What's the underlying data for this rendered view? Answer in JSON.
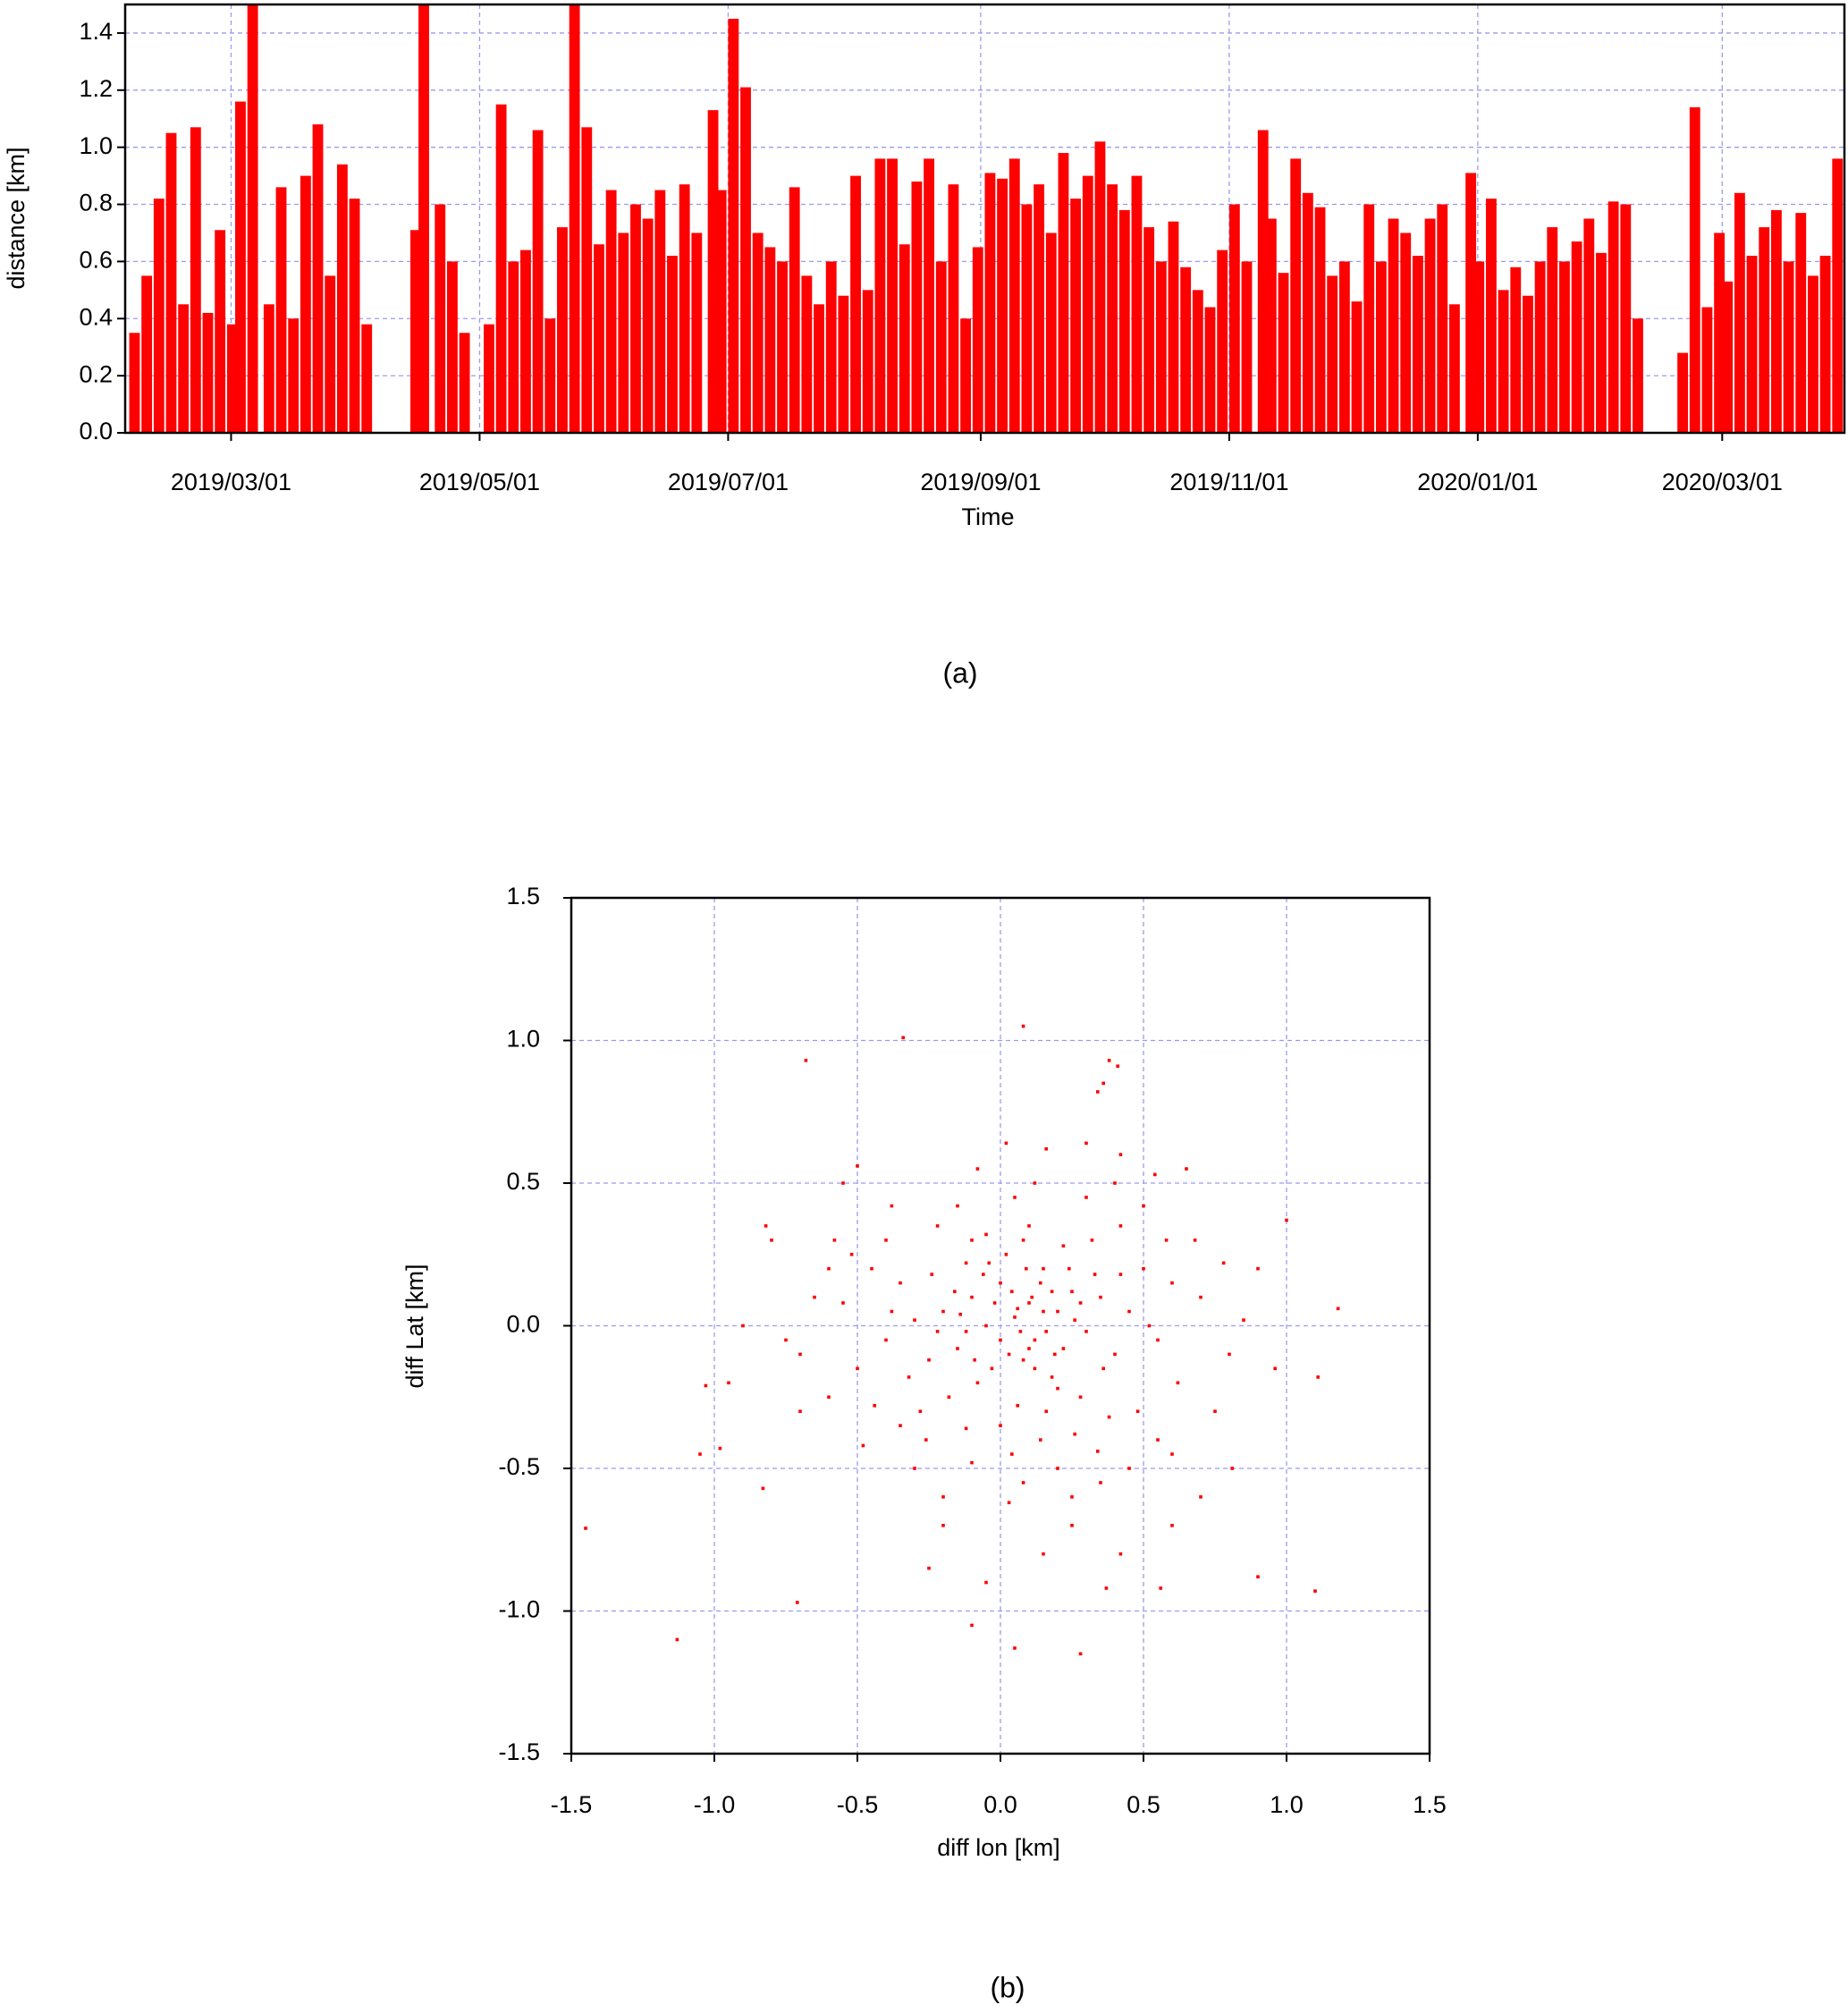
{
  "chart_data": [
    {
      "type": "bar",
      "xlabel": "Time",
      "ylabel": "distance [km]",
      "caption": "(a)",
      "color": "#ff0000",
      "grid": true,
      "xlim": [
        "2019/02/03",
        "2020/03/31"
      ],
      "xticks": [
        "2019/03/01",
        "2019/05/01",
        "2019/07/01",
        "2019/09/01",
        "2019/11/01",
        "2020/01/01",
        "2020/03/01"
      ],
      "ylim": [
        0,
        1.5
      ],
      "yticks": [
        {
          "value": 0,
          "label": "0.0"
        },
        0.2,
        0.4,
        0.6,
        0.8,
        {
          "value": 1,
          "label": "1.0"
        },
        1.2,
        1.4
      ],
      "x": [
        "2019/02/04",
        "2019/02/07",
        "2019/02/10",
        "2019/02/13",
        "2019/02/16",
        "2019/02/19",
        "2019/02/22",
        "2019/02/25",
        "2019/02/28",
        "2019/03/02",
        "2019/03/05",
        "2019/03/09",
        "2019/03/12",
        "2019/03/15",
        "2019/03/18",
        "2019/03/21",
        "2019/03/24",
        "2019/03/27",
        "2019/03/30",
        "2019/04/02",
        "2019/04/14",
        "2019/04/16",
        "2019/04/20",
        "2019/04/23",
        "2019/04/26",
        "2019/05/02",
        "2019/05/05",
        "2019/05/08",
        "2019/05/11",
        "2019/05/14",
        "2019/05/17",
        "2019/05/20",
        "2019/05/23",
        "2019/05/26",
        "2019/05/29",
        "2019/06/01",
        "2019/06/04",
        "2019/06/07",
        "2019/06/10",
        "2019/06/13",
        "2019/06/16",
        "2019/06/19",
        "2019/06/22",
        "2019/06/26",
        "2019/06/28",
        "2019/07/01",
        "2019/07/04",
        "2019/07/07",
        "2019/07/10",
        "2019/07/13",
        "2019/07/16",
        "2019/07/19",
        "2019/07/22",
        "2019/07/25",
        "2019/07/28",
        "2019/07/31",
        "2019/08/03",
        "2019/08/06",
        "2019/08/09",
        "2019/08/12",
        "2019/08/15",
        "2019/08/18",
        "2019/08/21",
        "2019/08/24",
        "2019/08/27",
        "2019/08/30",
        "2019/09/02",
        "2019/09/05",
        "2019/09/08",
        "2019/09/11",
        "2019/09/14",
        "2019/09/17",
        "2019/09/20",
        "2019/09/23",
        "2019/09/26",
        "2019/09/29",
        "2019/10/02",
        "2019/10/05",
        "2019/10/08",
        "2019/10/11",
        "2019/10/14",
        "2019/10/17",
        "2019/10/20",
        "2019/10/23",
        "2019/10/26",
        "2019/10/29",
        "2019/11/01",
        "2019/11/04",
        "2019/11/08",
        "2019/11/10",
        "2019/11/13",
        "2019/11/16",
        "2019/11/19",
        "2019/11/22",
        "2019/11/25",
        "2019/11/28",
        "2019/12/01",
        "2019/12/04",
        "2019/12/07",
        "2019/12/10",
        "2019/12/13",
        "2019/12/16",
        "2019/12/19",
        "2019/12/22",
        "2019/12/25",
        "2019/12/29",
        "2019/12/31",
        "2020/01/03",
        "2020/01/06",
        "2020/01/09",
        "2020/01/12",
        "2020/01/15",
        "2020/01/18",
        "2020/01/21",
        "2020/01/24",
        "2020/01/27",
        "2020/01/30",
        "2020/02/02",
        "2020/02/05",
        "2020/02/08",
        "2020/02/19",
        "2020/02/22",
        "2020/02/25",
        "2020/02/28",
        "2020/03/01",
        "2020/03/04",
        "2020/03/07",
        "2020/03/10",
        "2020/03/13",
        "2020/03/16",
        "2020/03/19",
        "2020/03/22",
        "2020/03/25",
        "2020/03/28"
      ],
      "values": [
        0.35,
        0.55,
        0.82,
        1.05,
        0.45,
        1.07,
        0.42,
        0.71,
        0.38,
        1.16,
        1.5,
        0.45,
        0.86,
        0.4,
        0.9,
        1.08,
        0.55,
        0.94,
        0.82,
        0.38,
        0.71,
        1.5,
        0.8,
        0.6,
        0.35,
        0.38,
        1.15,
        0.6,
        0.64,
        1.06,
        0.4,
        0.72,
        1.5,
        1.07,
        0.66,
        0.85,
        0.7,
        0.8,
        0.75,
        0.85,
        0.62,
        0.87,
        0.7,
        1.13,
        0.85,
        1.45,
        1.21,
        0.7,
        0.65,
        0.6,
        0.86,
        0.55,
        0.45,
        0.6,
        0.48,
        0.9,
        0.5,
        0.96,
        0.96,
        0.66,
        0.88,
        0.96,
        0.6,
        0.87,
        0.4,
        0.65,
        0.91,
        0.89,
        0.96,
        0.8,
        0.87,
        0.7,
        0.98,
        0.82,
        0.9,
        1.02,
        0.87,
        0.78,
        0.9,
        0.72,
        0.6,
        0.74,
        0.58,
        0.5,
        0.44,
        0.64,
        0.8,
        0.6,
        1.06,
        0.75,
        0.56,
        0.96,
        0.84,
        0.79,
        0.55,
        0.6,
        0.46,
        0.8,
        0.6,
        0.75,
        0.7,
        0.62,
        0.75,
        0.8,
        0.45,
        0.91,
        0.6,
        0.82,
        0.5,
        0.58,
        0.48,
        0.6,
        0.72,
        0.6,
        0.67,
        0.75,
        0.63,
        0.81,
        0.8,
        0.4,
        0.28,
        1.14,
        0.44,
        0.7,
        0.53,
        0.84,
        0.62,
        0.72,
        0.78,
        0.6,
        0.77,
        0.55,
        0.62,
        0.96
      ]
    },
    {
      "type": "scatter",
      "xlabel": "diff lon [km]",
      "ylabel": "diff Lat [km]",
      "caption": "(b)",
      "color": "#ff0000",
      "grid": true,
      "xlim": [
        -1.5,
        1.5
      ],
      "ylim": [
        -1.5,
        1.5
      ],
      "xticks": [
        -1.5,
        {
          "value": -1,
          "label": "-1.0"
        },
        -0.5,
        {
          "value": 0,
          "label": "0.0"
        },
        0.5,
        {
          "value": 1,
          "label": "1.0"
        },
        1.5
      ],
      "yticks": [
        -1.5,
        {
          "value": -1,
          "label": "-1.0"
        },
        -0.5,
        {
          "value": 0,
          "label": "0.0"
        },
        0.5,
        {
          "value": 1,
          "label": "1.0"
        },
        1.5
      ],
      "x": [
        -1.45,
        -1.13,
        -0.68,
        -0.34,
        0.08,
        0.38,
        0.41,
        0.36,
        0.34,
        -1.05,
        -0.83,
        -0.71,
        0.9,
        1.1,
        1.18,
        1.11,
        1.0,
        0.28,
        0.05,
        -0.1,
        -1.03,
        -0.98,
        -0.8,
        -0.82,
        -0.55,
        -0.5,
        0.16,
        0.02,
        0.3,
        0.42,
        0.65,
        0.54,
        -0.25,
        0.37,
        0.56,
        0.42,
        0.81,
        0.96,
        0.9,
        0.85,
        -0.9,
        -0.7,
        -0.6,
        -0.95,
        0.7,
        0.6,
        -0.2,
        -0.05,
        0.15,
        0.25,
        0.05,
        0.1,
        -0.05,
        0.12,
        -0.1,
        0.2,
        0.0,
        -0.15,
        0.08,
        0.25,
        -0.2,
        0.15,
        -0.08,
        0.3,
        -0.25,
        0.02,
        0.18,
        -0.12,
        0.35,
        -0.3,
        0.06,
        0.22,
        -0.18,
        0.4,
        -0.35,
        0.1,
        0.28,
        -0.05,
        0.45,
        -0.4,
        0.0,
        0.32,
        -0.28,
        0.5,
        -0.45,
        0.14,
        0.38,
        -0.22,
        0.55,
        -0.5,
        0.05,
        0.42,
        -0.35,
        0.6,
        -0.55,
        0.2,
        0.48,
        -0.15,
        0.62,
        -0.6,
        0.08,
        0.3,
        -0.4,
        0.7,
        -0.65,
        0.25,
        0.55,
        -0.3,
        0.75,
        -0.48,
        0.12,
        0.5,
        -0.1,
        0.68,
        -0.58,
        0.35,
        0.78,
        -0.7,
        0.03,
        0.45,
        -0.2,
        0.6,
        -0.08,
        0.4,
        -0.38,
        0.8,
        -0.75,
        0.15,
        -0.02,
        0.07,
        0.18,
        -0.06,
        0.1,
        0.22,
        -0.12,
        0.03,
        0.14,
        0.26,
        -0.16,
        0.0,
        0.09,
        0.19,
        -0.09,
        0.33,
        -0.22,
        0.11,
        0.04,
        0.24,
        -0.03,
        0.16,
        0.06,
        -0.14,
        0.28,
        0.12,
        -0.04,
        0.2,
        -0.24,
        0.36,
        -0.32,
        0.08,
        0.16,
        -0.1,
        0.42,
        -0.38,
        0.26,
        -0.26,
        0.52,
        -0.44,
        0.04,
        0.34,
        -0.12,
        0.58,
        -0.52
      ],
      "values": [
        -0.71,
        -1.1,
        0.93,
        1.01,
        1.05,
        0.93,
        0.91,
        0.85,
        0.82,
        -0.45,
        -0.57,
        -0.97,
        -0.88,
        -0.93,
        0.06,
        -0.18,
        0.37,
        -1.15,
        -1.13,
        -1.05,
        -0.21,
        -0.43,
        0.3,
        0.35,
        0.5,
        0.56,
        0.62,
        0.64,
        0.64,
        0.6,
        0.55,
        0.53,
        -0.85,
        -0.92,
        -0.92,
        -0.8,
        -0.5,
        -0.15,
        0.2,
        0.02,
        0.0,
        -0.1,
        0.2,
        -0.2,
        -0.6,
        -0.7,
        -0.7,
        -0.9,
        -0.8,
        -0.7,
        0.03,
        0.08,
        0.0,
        -0.05,
        0.1,
        0.05,
        0.15,
        -0.08,
        -0.12,
        0.12,
        0.05,
        0.2,
        -0.2,
        -0.02,
        -0.12,
        0.25,
        -0.18,
        0.22,
        0.1,
        0.02,
        -0.28,
        0.28,
        -0.25,
        -0.1,
        0.15,
        0.35,
        -0.25,
        0.32,
        0.05,
        -0.05,
        -0.35,
        0.3,
        -0.3,
        0.2,
        0.2,
        -0.4,
        -0.32,
        0.35,
        -0.05,
        -0.15,
        0.45,
        0.35,
        -0.35,
        0.15,
        0.08,
        -0.5,
        -0.3,
        0.42,
        -0.2,
        -0.25,
        -0.55,
        0.45,
        0.3,
        0.1,
        0.1,
        -0.6,
        -0.4,
        -0.5,
        -0.3,
        -0.42,
        0.5,
        0.42,
        -0.48,
        0.3,
        0.3,
        -0.55,
        0.22,
        -0.3,
        -0.62,
        -0.5,
        -0.6,
        -0.45,
        0.55,
        0.5,
        0.42,
        -0.1,
        -0.05,
        0.05,
        0.08,
        -0.02,
        0.12,
        0.18,
        -0.08,
        -0.08,
        -0.02,
        -0.1,
        0.15,
        0.02,
        0.12,
        -0.05,
        0.2,
        -0.1,
        -0.12,
        0.18,
        -0.02,
        0.1,
        0.12,
        0.2,
        -0.15,
        -0.02,
        0.06,
        0.04,
        0.08,
        -0.15,
        0.22,
        -0.22,
        0.18,
        -0.15,
        -0.18,
        0.3,
        -0.3,
        0.3,
        0.18,
        0.05,
        -0.38,
        -0.4,
        0.0,
        -0.28,
        -0.45,
        -0.44,
        -0.36,
        0.3,
        0.25
      ]
    }
  ]
}
